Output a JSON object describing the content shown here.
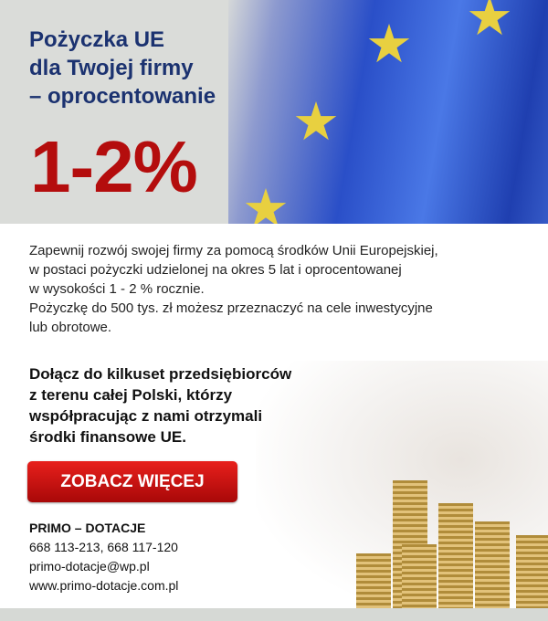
{
  "header": {
    "title_lines": [
      "Pożyczka UE",
      "dla Twojej firmy",
      "– oprocentowanie"
    ],
    "rate": "1-2%"
  },
  "body": {
    "lines": [
      "Zapewnij rozwój swojej firmy za pomocą środków Unii Europejskiej,",
      "w postaci pożyczki udzielonej na okres 5 lat i oprocentowanej",
      "w wysokości 1 - 2 % rocznie.",
      "Pożyczkę do 500 tys. zł możesz przeznaczyć na cele inwestycyjne",
      "lub obrotowe."
    ],
    "highlight_lines": [
      "Dołącz do kilkuset przedsiębiorców",
      "z terenu całej Polski, którzy",
      "współpracując z nami otrzymali",
      "środki finansowe UE."
    ]
  },
  "cta": {
    "label": "ZOBACZ WIĘCEJ"
  },
  "contact": {
    "name": "PRIMO – DOTACJE",
    "phones": "668 113-213, 668 117-120",
    "email": "primo-dotacje@wp.pl",
    "website": "www.primo-dotacje.com.pl"
  },
  "colors": {
    "title": "#1b3270",
    "rate": "#b40d0d",
    "button": "#d01010"
  }
}
